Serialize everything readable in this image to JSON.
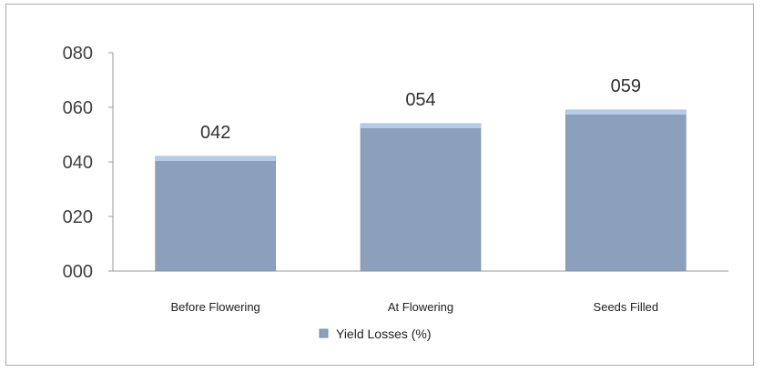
{
  "chart_data": {
    "type": "bar",
    "categories": [
      "Before Flowering",
      "At Flowering",
      "Seeds Filled"
    ],
    "series": [
      {
        "name": "Yield Losses (%)",
        "values": [
          42,
          54,
          59
        ]
      }
    ],
    "data_labels": [
      "042",
      "054",
      "059"
    ],
    "yticks": [
      "000",
      "020",
      "040",
      "060",
      "080"
    ],
    "ylim": [
      0,
      80
    ],
    "grid": false,
    "legend_position": "bottom",
    "bar_color": "#8c9fbb",
    "bar_top_color": "#b6cbe6"
  }
}
